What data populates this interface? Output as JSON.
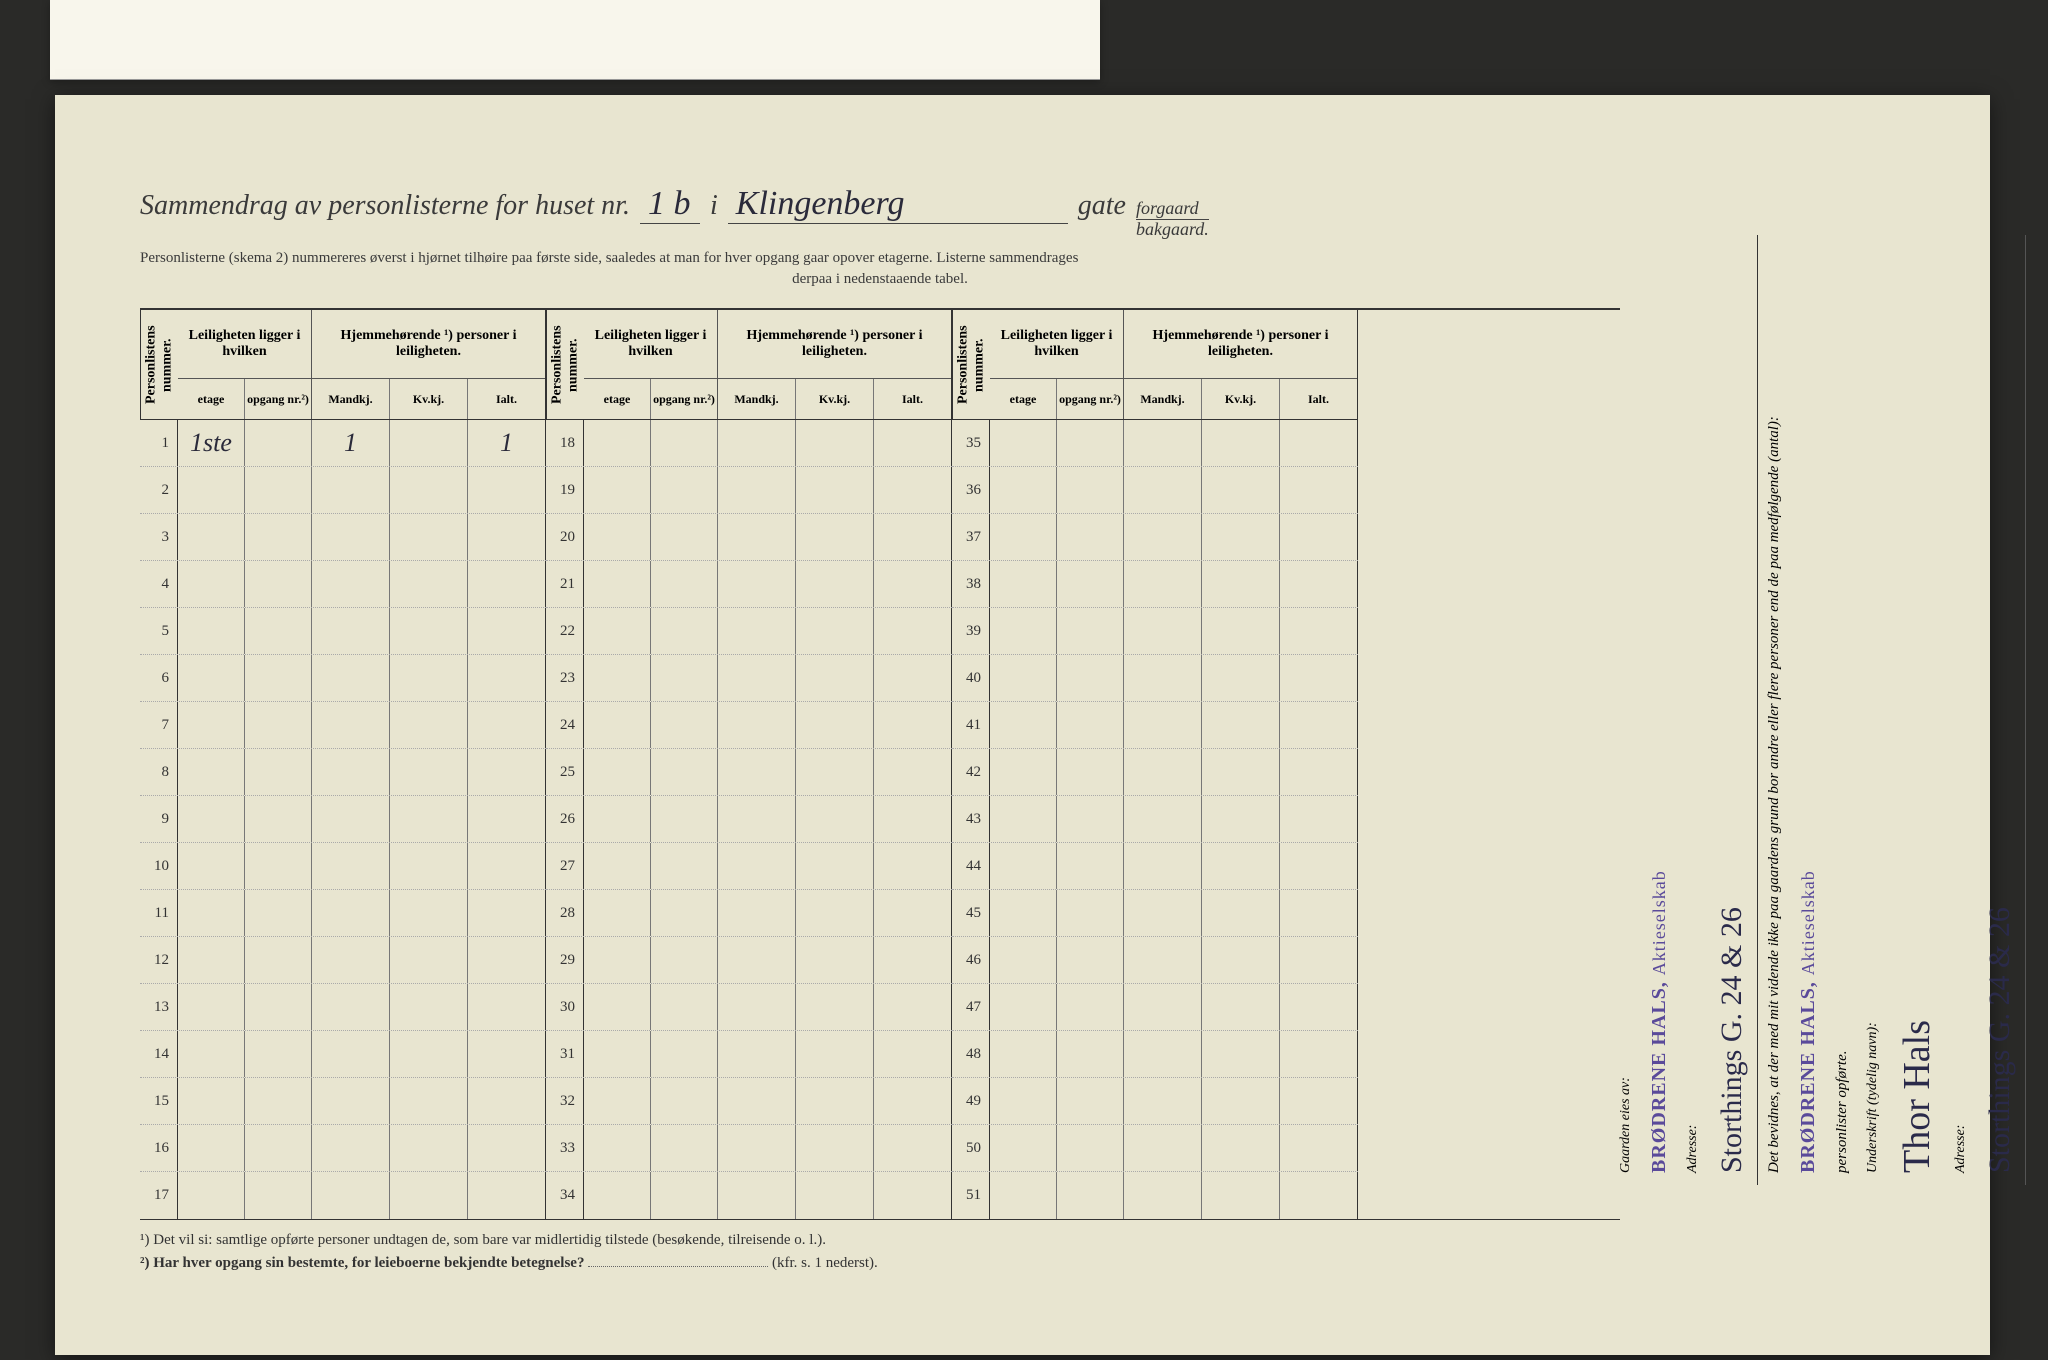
{
  "background_color": "#e8e5d0",
  "ink_color": "#3a3a3a",
  "stamp_color": "#5a4a9a",
  "title": {
    "prefix": "Sammendrag av personlisterne for huset nr.",
    "house_nr": "1 b",
    "mid": "i",
    "street": "Klingenberg",
    "suffix": "gate",
    "forgaard": "forgaard",
    "bakgaard": "bakgaard."
  },
  "subtitle_line1": "Personlisterne (skema 2) nummereres øverst i hjørnet tilhøire paa første side, saaledes at man for hver opgang gaar opover etagerne.  Listerne sammendrages",
  "subtitle_line2": "derpaa i nedenstaaende tabel.",
  "headers": {
    "personlistens": "Personlistens nummer.",
    "leiligheten": "Leiligheten ligger i hvilken",
    "hjemme": "Hjemmehørende ¹) personer i leiligheten.",
    "etage": "etage",
    "opgang": "opgang nr.²)",
    "mandkj": "Mandkj.",
    "kvkj": "Kv.kj.",
    "ialt": "Ialt."
  },
  "sections": [
    {
      "rows": [
        1,
        2,
        3,
        4,
        5,
        6,
        7,
        8,
        9,
        10,
        11,
        12,
        13,
        14,
        15,
        16,
        17
      ]
    },
    {
      "rows": [
        18,
        19,
        20,
        21,
        22,
        23,
        24,
        25,
        26,
        27,
        28,
        29,
        30,
        31,
        32,
        33,
        34
      ]
    },
    {
      "rows": [
        35,
        36,
        37,
        38,
        39,
        40,
        41,
        42,
        43,
        44,
        45,
        46,
        47,
        48,
        49,
        50,
        51
      ]
    }
  ],
  "row1_data": {
    "etage": "1ste",
    "mandkj": "1",
    "ialt": "1"
  },
  "footnotes": {
    "f1": "¹)  Det vil si: samtlige opførte personer undtagen de, som bare var midlertidig tilstede (besøkende, tilreisende o. l.).",
    "f2_label": "²)  Har hver opgang sin bestemte, for leieboerne bekjendte betegnelse?",
    "f2_ref": "(kfr. s. 1 nederst)."
  },
  "side": {
    "gaarden_label": "Gaarden eies av:",
    "stamp_bold": "BRØDRENE HALS,",
    "stamp_light": "Aktieselskab",
    "adresse_label": "Adresse:",
    "adresse_script": "Storthings G. 24 & 26",
    "bevidnes": "Det bevidnes, at der med mit vidende ikke paa gaardens grund bor andre eller flere personer end de paa medfølgende (antal):",
    "personlister": "personlister opførte.",
    "underskrift_label": "Underskrift (tydelig navn):",
    "underskrift_script": "Thor Hals"
  }
}
